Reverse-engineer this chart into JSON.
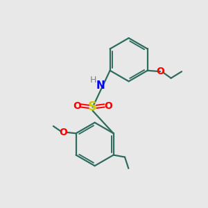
{
  "background_color": "#e8e8e8",
  "bond_color": "#2d6b5e",
  "S_color": "#cccc00",
  "O_color": "#ff0000",
  "N_color": "#0000ff",
  "H_color": "#808080",
  "figsize": [
    3.0,
    3.0
  ],
  "dpi": 100,
  "xlim": [
    0,
    10
  ],
  "ylim": [
    0,
    10
  ]
}
